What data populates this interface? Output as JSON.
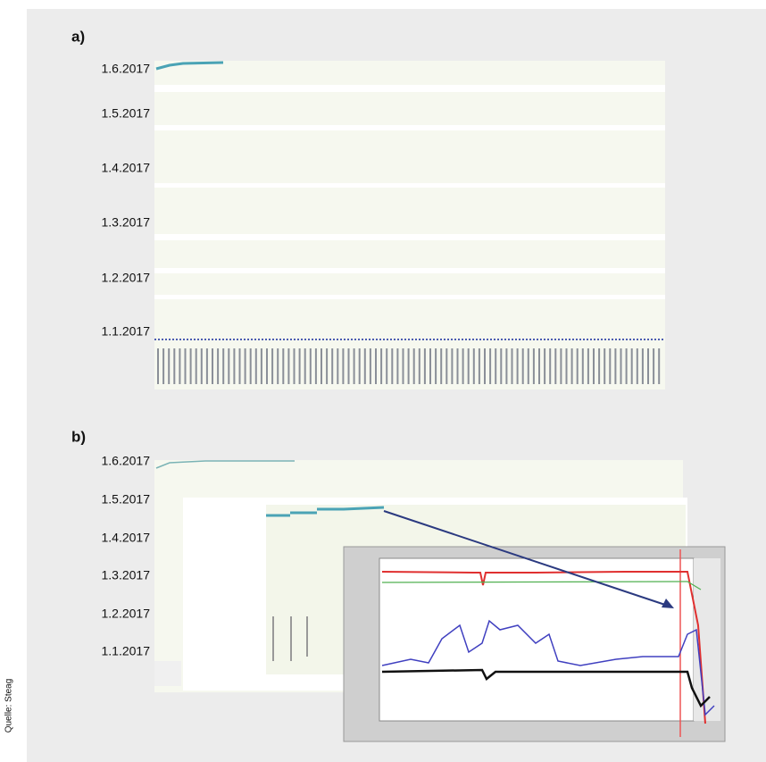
{
  "panels": [
    {
      "label": "a)",
      "dates": [
        "1.6.2017",
        "1.5.2017",
        "1.4.2017",
        "1.3.2017",
        "1.2.2017",
        "1.1.2017"
      ]
    },
    {
      "label": "b)",
      "dates": [
        "1.6.2017",
        "1.5.2017",
        "1.4.2017",
        "1.3.2017",
        "1.2.2017",
        "1.1.2017"
      ]
    }
  ],
  "source": "Quelle: Steag"
}
